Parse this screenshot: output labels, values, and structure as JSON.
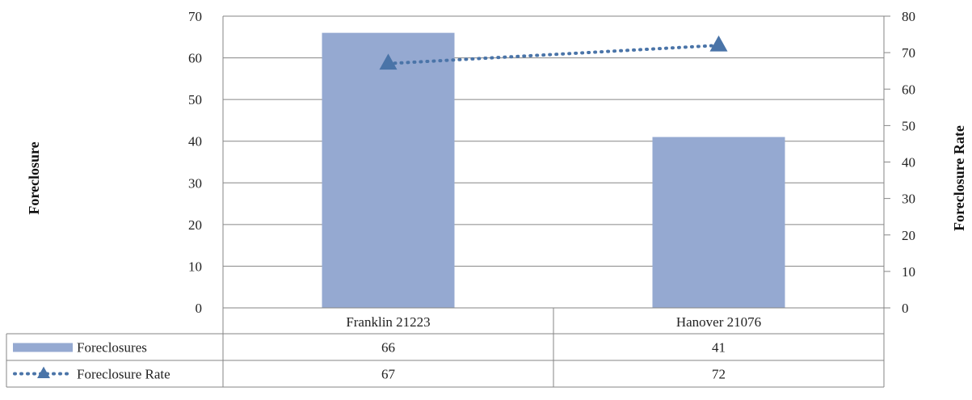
{
  "chart_data": {
    "type": "bar",
    "categories": [
      "Franklin 21223",
      "Hanover 21076"
    ],
    "series": [
      {
        "name": "Foreclosures",
        "type": "bar",
        "axis": "left",
        "values": [
          66,
          41
        ],
        "color": "#95a9d1"
      },
      {
        "name": "Foreclosure Rate",
        "type": "line",
        "axis": "right",
        "values": [
          67,
          72
        ],
        "color": "#4a74a8",
        "line_style": "dotted",
        "marker": "triangle"
      }
    ],
    "ylabel": "Foreclosure",
    "y2label": "Foreclosure Rate",
    "ylim": [
      0,
      70
    ],
    "y2lim": [
      0,
      80
    ],
    "yticks": [
      "0",
      "10",
      "20",
      "30",
      "40",
      "50",
      "60",
      "70"
    ],
    "y2ticks": [
      "0",
      "10",
      "20",
      "30",
      "40",
      "50",
      "60",
      "70",
      "80"
    ],
    "grid": true,
    "data_table": true
  }
}
